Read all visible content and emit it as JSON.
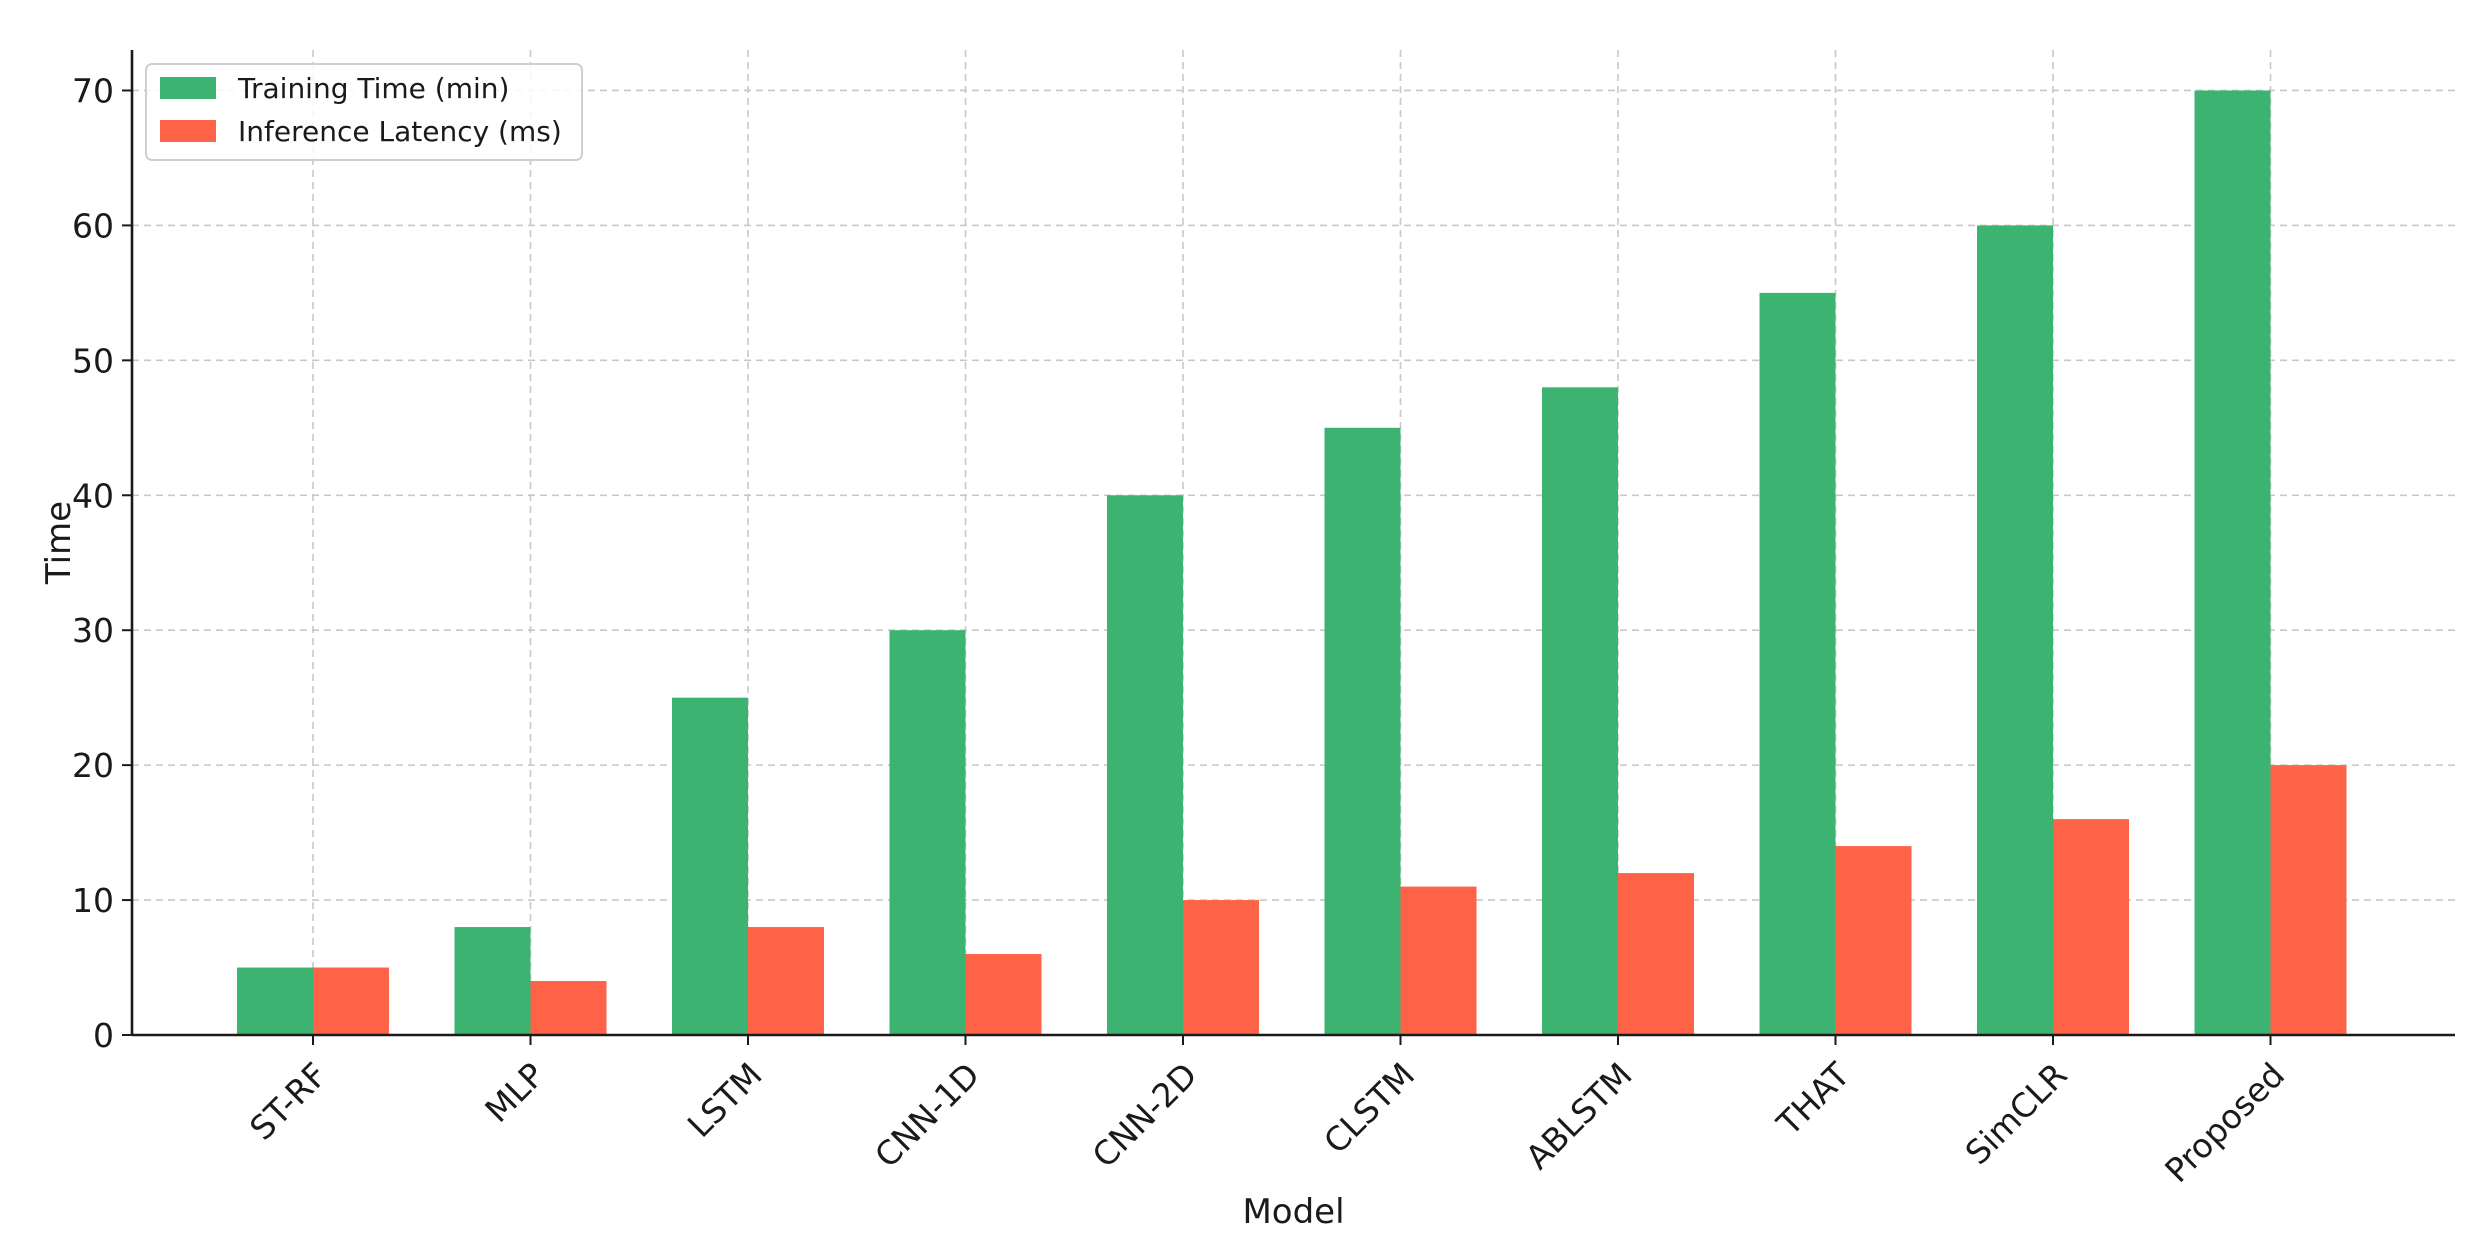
{
  "chart_data": {
    "type": "bar",
    "title": "",
    "xlabel": "Model",
    "ylabel": "Time",
    "ylim": [
      0,
      73
    ],
    "yticks": [
      0,
      10,
      20,
      30,
      40,
      50,
      60,
      70
    ],
    "ytick_labels": [
      "0",
      "10",
      "20",
      "30",
      "40",
      "50",
      "60",
      "70"
    ],
    "categories": [
      "ST-RF",
      "MLP",
      "LSTM",
      "CNN-1D",
      "CNN-2D",
      "CLSTM",
      "ABLSTM",
      "THAT",
      "SimCLR",
      "Proposed"
    ],
    "series": [
      {
        "name": "Training Time (min)",
        "color": "#3cb371",
        "values": [
          5,
          8,
          25,
          30,
          40,
          45,
          48,
          55,
          60,
          70
        ]
      },
      {
        "name": "Inference Latency (ms)",
        "color": "#ff6347",
        "values": [
          5,
          4,
          8,
          6,
          10,
          11,
          12,
          14,
          16,
          20
        ]
      }
    ],
    "grid": true,
    "legend_position": "top-left",
    "tick_label_rotation": "45 degrees"
  }
}
